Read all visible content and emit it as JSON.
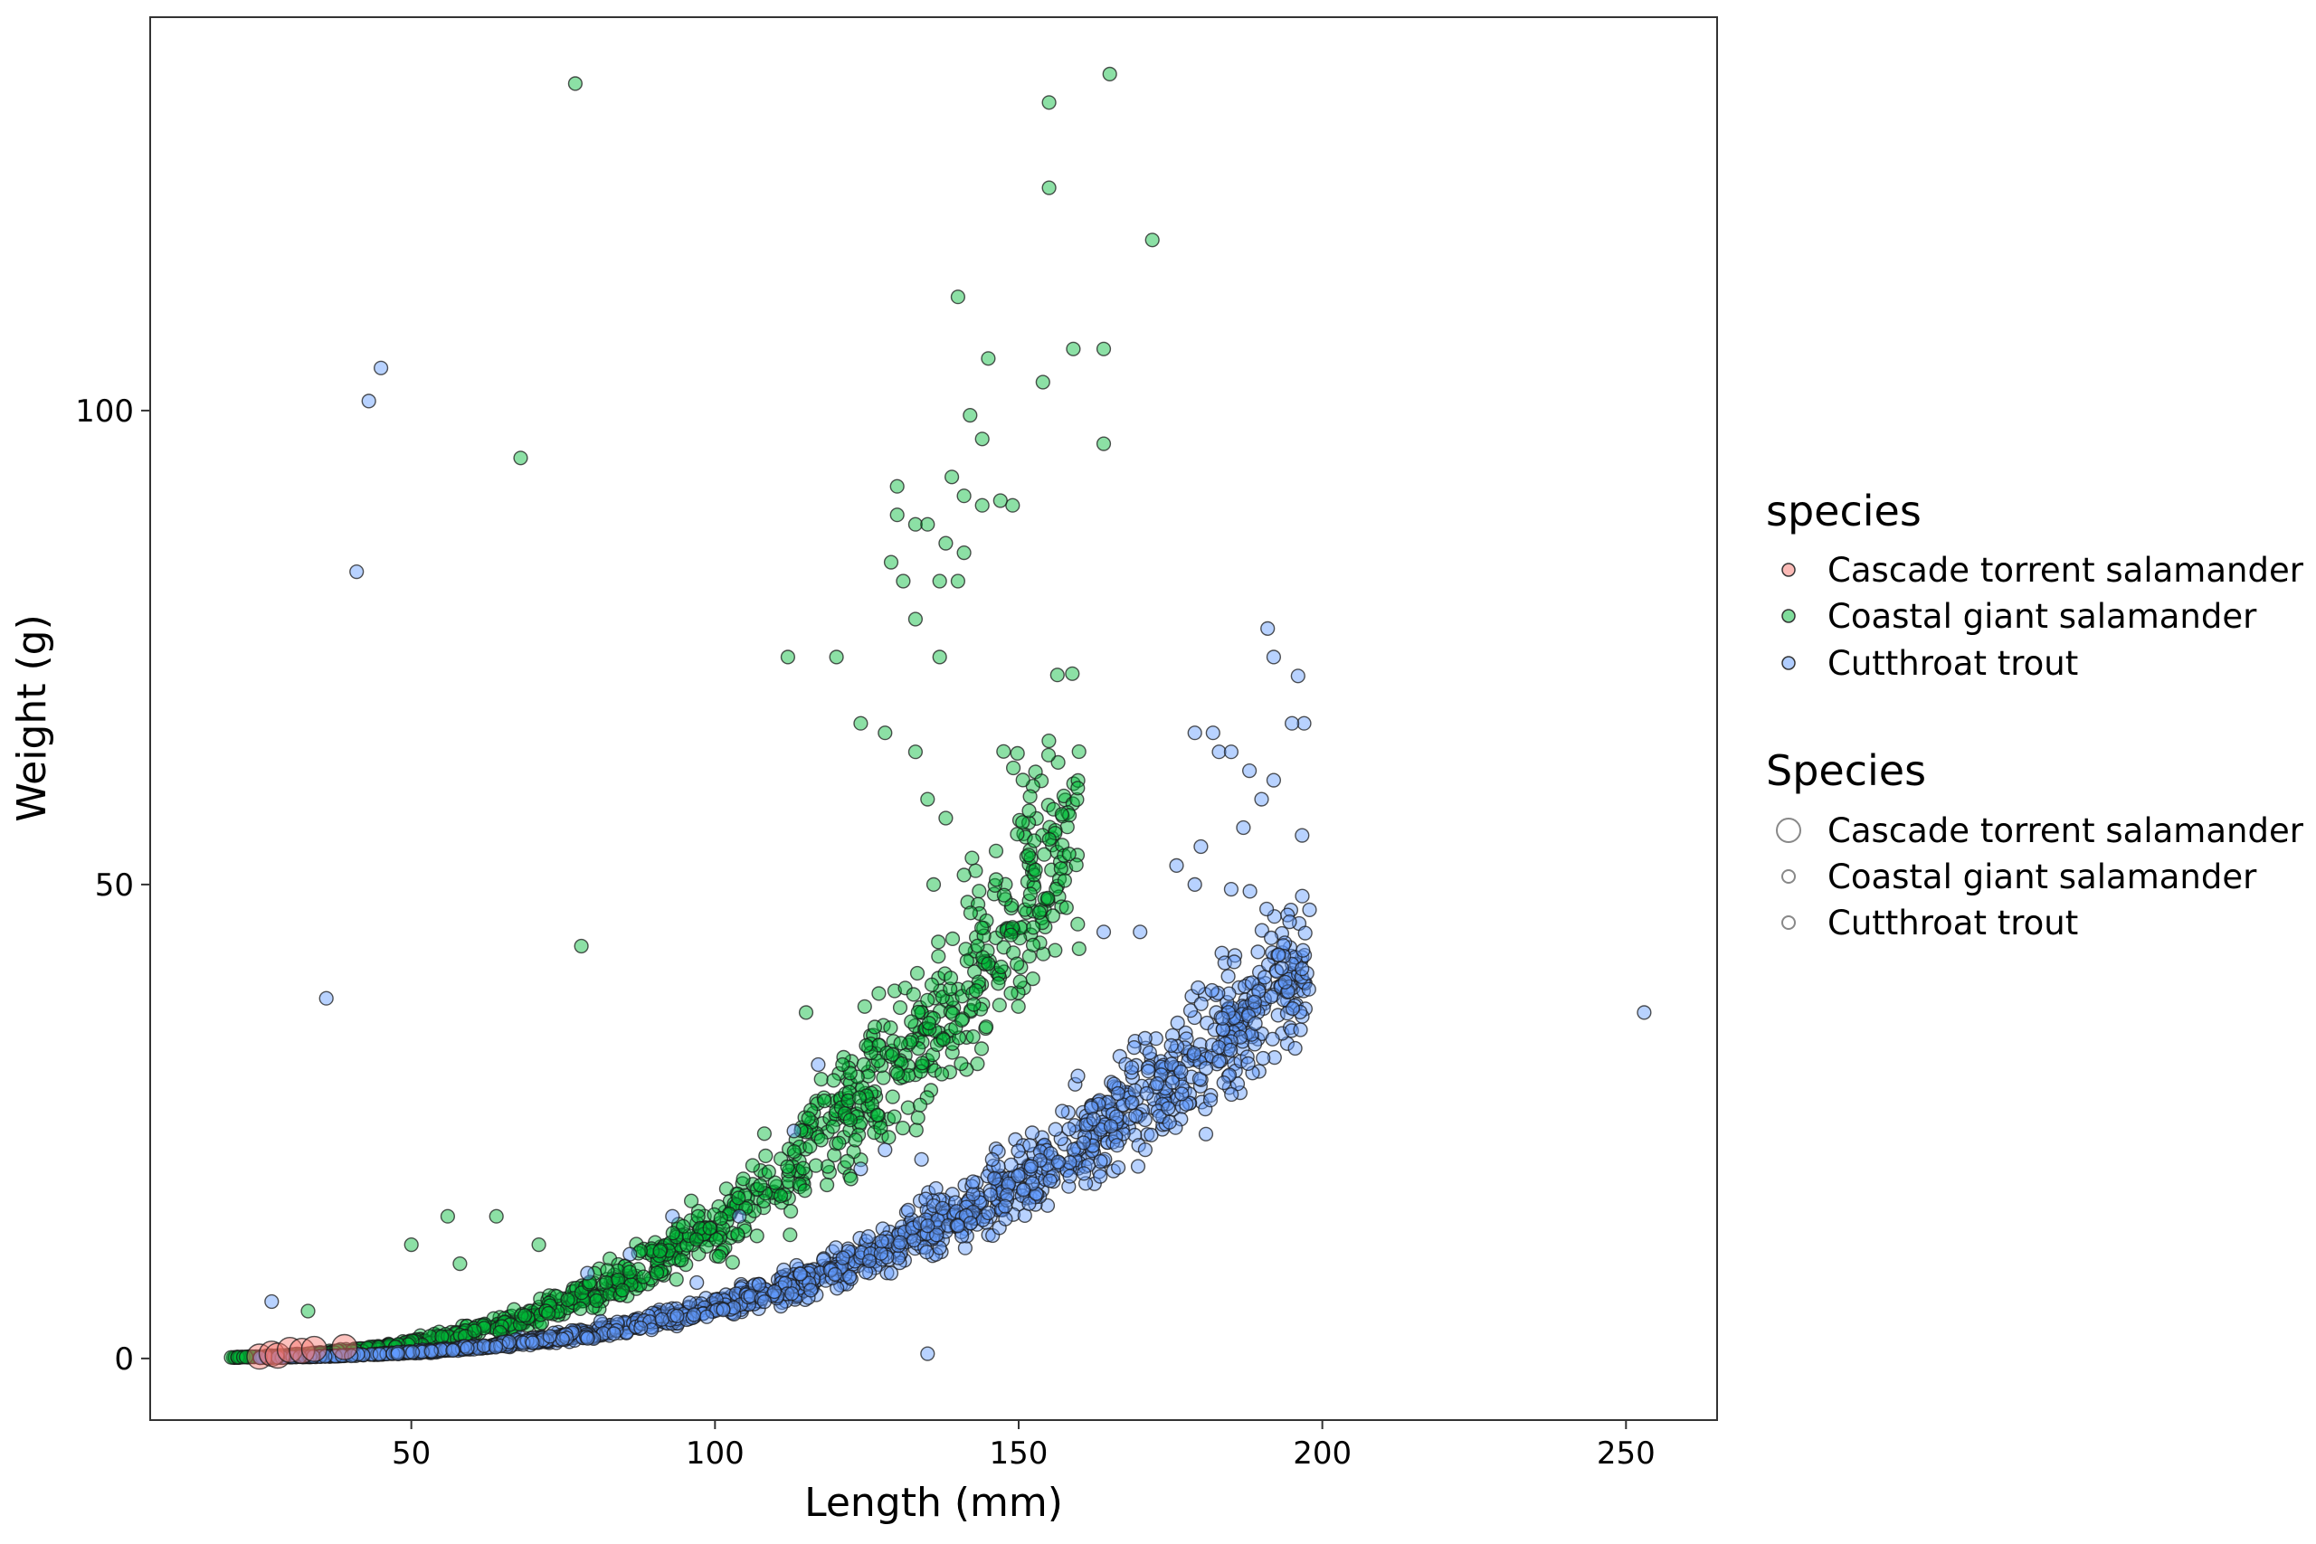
{
  "chart_data": {
    "type": "scatter",
    "title": "",
    "xlabel": "Length (mm)",
    "ylabel": "Weight (g)",
    "xlim": [
      7,
      265
    ],
    "ylim": [
      -6.5,
      141.5
    ],
    "x_ticks": [
      50,
      100,
      150,
      200,
      250
    ],
    "y_ticks": [
      0,
      50,
      100
    ],
    "grid": false,
    "legend_position": "right",
    "legends": [
      {
        "title": "species",
        "kind": "color",
        "entries": [
          {
            "label": "Cascade torrent salamander",
            "color": "#F8766D"
          },
          {
            "label": "Coastal giant salamander",
            "color": "#00BA38"
          },
          {
            "label": "Cutthroat trout",
            "color": "#619CFF"
          }
        ]
      },
      {
        "title": "Species",
        "kind": "size",
        "entries": [
          {
            "label": "Cascade torrent salamander",
            "size": 3
          },
          {
            "label": "Coastal giant salamander",
            "size": 1.6
          },
          {
            "label": "Cutthroat trout",
            "size": 1.6
          }
        ]
      }
    ],
    "series": [
      {
        "name": "Cascade torrent salamander",
        "color": "#F8766D",
        "size": 3,
        "points": [
          [
            25,
            0.2
          ],
          [
            27,
            0.5
          ],
          [
            28,
            0.3
          ],
          [
            30,
            0.9
          ],
          [
            32,
            0.8
          ],
          [
            34,
            1.0
          ],
          [
            39,
            1.2
          ]
        ]
      },
      {
        "name": "Coastal giant salamander",
        "color": "#00BA38",
        "size": 1.6,
        "points": [
          [
            77,
            134.5
          ],
          [
            155,
            132.5
          ],
          [
            165,
            135.5
          ],
          [
            155,
            123.5
          ],
          [
            172,
            118
          ],
          [
            140,
            112
          ],
          [
            145,
            105.5
          ],
          [
            159,
            106.5
          ],
          [
            164,
            106.5
          ],
          [
            154,
            103
          ],
          [
            142,
            99.5
          ],
          [
            144,
            97
          ],
          [
            164,
            96.5
          ],
          [
            68,
            95
          ],
          [
            130,
            92
          ],
          [
            139,
            93
          ],
          [
            141,
            91
          ],
          [
            144,
            90
          ],
          [
            147,
            90.5
          ],
          [
            149,
            90
          ],
          [
            130,
            89
          ],
          [
            133,
            88
          ],
          [
            135,
            88
          ],
          [
            138,
            86
          ],
          [
            141,
            85
          ],
          [
            137,
            82
          ],
          [
            140,
            82
          ],
          [
            129,
            84
          ],
          [
            131,
            82
          ],
          [
            120,
            74
          ],
          [
            78,
            43.5
          ],
          [
            112,
            74
          ],
          [
            133,
            78
          ],
          [
            137,
            74
          ],
          [
            115,
            36.5
          ],
          [
            121,
            31
          ],
          [
            124,
            67
          ],
          [
            128,
            66
          ],
          [
            133,
            64
          ],
          [
            135,
            59
          ],
          [
            138,
            57
          ],
          [
            141,
            51
          ],
          [
            136,
            50
          ],
          [
            64,
            15
          ],
          [
            71,
            12
          ],
          [
            56,
            15
          ],
          [
            50,
            12
          ],
          [
            58,
            10
          ],
          [
            33,
            5
          ]
        ],
        "bands": [
          {
            "x": [
              20,
              160
            ],
            "a": 1.1e-05,
            "b": 3.05,
            "spread": 0.13,
            "n": 1000
          }
        ]
      },
      {
        "name": "Cutthroat trout",
        "color": "#619CFF",
        "size": 1.6,
        "points": [
          [
            45,
            104.5
          ],
          [
            43,
            101
          ],
          [
            41,
            83
          ],
          [
            36,
            38
          ],
          [
            253,
            36.5
          ],
          [
            27,
            6
          ],
          [
            135,
            0.5
          ],
          [
            129,
            9
          ],
          [
            140,
            14
          ],
          [
            135,
            14
          ],
          [
            191,
            77
          ],
          [
            192,
            74
          ],
          [
            196,
            72
          ],
          [
            197,
            67
          ],
          [
            195,
            67
          ],
          [
            188,
            62
          ],
          [
            192,
            61
          ],
          [
            182,
            66
          ],
          [
            179,
            66
          ],
          [
            183,
            64
          ],
          [
            185,
            64
          ],
          [
            190,
            59
          ],
          [
            187,
            56
          ],
          [
            180,
            54
          ],
          [
            176,
            52
          ],
          [
            179,
            50
          ],
          [
            185,
            49.5
          ],
          [
            164,
            45
          ],
          [
            170,
            45
          ],
          [
            117,
            31
          ],
          [
            113,
            24
          ],
          [
            124,
            20
          ],
          [
            128,
            22
          ],
          [
            134,
            21
          ],
          [
            146,
            19
          ],
          [
            93,
            15
          ],
          [
            104,
            15
          ],
          [
            86,
            11
          ],
          [
            79,
            9
          ],
          [
            97,
            8
          ]
        ],
        "bands": [
          {
            "x": [
              25,
              198
            ],
            "a": 4.5e-06,
            "b": 3.04,
            "spread": 0.11,
            "n": 1500
          }
        ]
      }
    ]
  }
}
